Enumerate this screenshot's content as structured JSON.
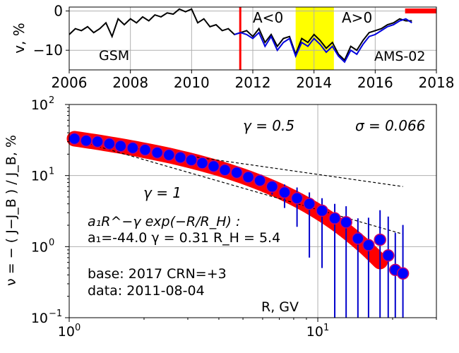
{
  "chart_data": [
    {
      "type": "line",
      "ylabel": "v, %",
      "xlim": [
        2006,
        2018
      ],
      "ylim": [
        -15,
        1
      ],
      "xticks": [
        "2006",
        "2008",
        "2010",
        "2012",
        "2014",
        "2016",
        "2018"
      ],
      "yticks": [
        "0",
        "−10"
      ],
      "grid": true,
      "annotations": {
        "gsm": "GSM",
        "ams": "AMS-02",
        "a_neg": "A<0",
        "a_pos": "A>0"
      },
      "colors": {
        "gsm": "#000000",
        "ams": "#0000dd",
        "event_line": "#ff0000",
        "base_bar": "#ff0000",
        "reversal_band": "#ffff00"
      },
      "event_date": 2011.59,
      "base_period": [
        2017.0,
        2018.0
      ],
      "reversal_band": [
        2013.4,
        2014.65
      ],
      "series": [
        {
          "name": "GSM",
          "x": [
            2006.0,
            2006.2,
            2006.4,
            2006.6,
            2006.8,
            2007.0,
            2007.2,
            2007.4,
            2007.6,
            2007.8,
            2008.0,
            2008.2,
            2008.4,
            2008.6,
            2008.8,
            2009.0,
            2009.2,
            2009.4,
            2009.6,
            2009.8,
            2010.0,
            2010.2,
            2010.4,
            2010.6,
            2010.8,
            2011.0,
            2011.2,
            2011.4,
            2011.6,
            2011.8,
            2012.0,
            2012.2,
            2012.4,
            2012.6,
            2012.8,
            2013.0,
            2013.2,
            2013.4,
            2013.6,
            2013.8,
            2014.0,
            2014.2,
            2014.4,
            2014.6,
            2014.8,
            2015.0,
            2015.2,
            2015.4,
            2015.6,
            2015.8,
            2016.0,
            2016.2,
            2016.4,
            2016.6,
            2016.8,
            2017.0,
            2017.2
          ],
          "values": [
            -6,
            -4.5,
            -5,
            -4,
            -5.5,
            -4.5,
            -3,
            -6.5,
            -2,
            -3.5,
            -2,
            -3,
            -1.5,
            -2.5,
            -1,
            -1.5,
            -0.5,
            -0.8,
            0.5,
            -0.2,
            0.5,
            -3,
            -2,
            -4,
            -3.5,
            -5,
            -4.5,
            -6,
            -5.5,
            -5,
            -6.5,
            -4.5,
            -8,
            -6,
            -9,
            -7,
            -6.5,
            -11,
            -7,
            -8,
            -6,
            -7.5,
            -9.5,
            -8,
            -11,
            -12.5,
            -9,
            -10,
            -7.5,
            -5.5,
            -5,
            -4.5,
            -3.5,
            -3,
            -2,
            -2.5,
            -2.5
          ]
        },
        {
          "name": "AMS-02",
          "x": [
            2011.4,
            2011.6,
            2011.8,
            2012.0,
            2012.2,
            2012.4,
            2012.6,
            2012.8,
            2013.0,
            2013.2,
            2013.4,
            2013.6,
            2013.8,
            2014.0,
            2014.2,
            2014.4,
            2014.6,
            2014.8,
            2015.0,
            2015.2,
            2015.4,
            2015.6,
            2015.8,
            2016.0,
            2016.2,
            2016.4,
            2016.6,
            2016.8,
            2017.0,
            2017.2
          ],
          "values": [
            -6,
            -5.5,
            -6,
            -7,
            -5.5,
            -9,
            -6.5,
            -10,
            -8,
            -7,
            -11.5,
            -8,
            -9,
            -7,
            -8.5,
            -10.5,
            -9,
            -11.5,
            -13,
            -10,
            -11,
            -8.5,
            -6.5,
            -6,
            -5,
            -4,
            -3.5,
            -2.5,
            -2,
            -3
          ]
        }
      ]
    },
    {
      "type": "scatter",
      "xlabel": "R, GV",
      "ylabel": "ν = − ( J−J_B ) / J_B, %",
      "xscale": "log",
      "yscale": "log",
      "xlim": [
        1,
        30
      ],
      "ylim": [
        0.1,
        100
      ],
      "xticks": [
        "10^0",
        "10^1"
      ],
      "yticks": [
        "10^−1",
        "10^0",
        "10^1",
        "10^2"
      ],
      "grid": true,
      "annotations": {
        "gamma_half": "γ = 0.5",
        "sigma": "σ = 0.066",
        "gamma_one": "γ = 1",
        "formula": "a₁R^−γ exp(−R/R_H) :",
        "params": "a₁=-44.0  γ = 0.31  R_H =  5.4",
        "base": "base: 2017   CRN=+3",
        "date": "data: 2011-08-04"
      },
      "colors": {
        "points": "#0000ff",
        "point_edge": "#cc0066",
        "fit_band": "#ff0000",
        "error_bars": "#0000cc",
        "ref_lines": "#000000"
      },
      "fit": {
        "a1": -44.0,
        "gamma": 0.31,
        "R_H": 5.4
      },
      "reference_lines": [
        {
          "slope": "gamma=0.5",
          "x": [
            1.05,
            22
          ],
          "y": [
            32,
            7
          ]
        },
        {
          "slope": "gamma=1",
          "x": [
            1.05,
            22
          ],
          "y": [
            32,
            1.5
          ]
        }
      ],
      "series": [
        {
          "name": "",
          "x": [
            1.05,
            1.17,
            1.3,
            1.45,
            1.61,
            1.8,
            2.02,
            2.26,
            2.52,
            2.8,
            3.1,
            3.43,
            3.81,
            4.23,
            4.72,
            5.25,
            5.85,
            6.55,
            7.35,
            8.25,
            9.25,
            10.4,
            11.7,
            13.0,
            14.5,
            16.0,
            17.8,
            19.2,
            20.5,
            22.0
          ],
          "values": [
            33,
            31,
            30,
            28,
            26,
            24.5,
            23,
            21,
            19.5,
            18,
            16.5,
            15,
            13.5,
            12,
            11,
            9.5,
            8.5,
            7,
            5.8,
            4.8,
            4,
            3.2,
            2.5,
            2.2,
            1.3,
            1.05,
            1.25,
            0.75,
            0.47,
            0.42
          ],
          "err_lo": [
            0,
            0,
            0,
            0,
            0,
            0,
            0,
            0,
            0,
            0,
            0,
            0,
            0,
            0,
            0,
            0,
            0,
            1.6,
            2.3,
            2.9,
            3.3,
            2.7,
            2.4,
            2.1,
            1.25,
            1.0,
            1.2,
            0.72,
            0.45,
            0.4
          ],
          "err_hi": [
            0,
            0,
            0,
            0,
            0,
            0,
            0,
            0,
            0,
            0,
            0,
            0,
            0,
            0,
            0,
            0,
            0,
            1.5,
            1.7,
            2.0,
            1.8,
            1.6,
            1.5,
            1.5,
            1.2,
            1.5,
            2.0,
            1.9,
            1.1,
            1.6
          ]
        }
      ]
    }
  ]
}
